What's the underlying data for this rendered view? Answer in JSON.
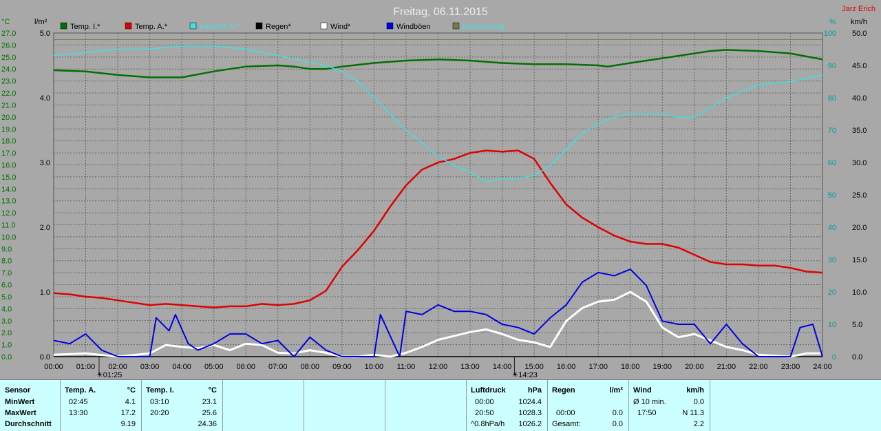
{
  "title": "Freitag, 06.11.2015",
  "author": "Jarz Erich",
  "colors": {
    "temp_indoor": "#007000",
    "temp_outdoor": "#e00000",
    "humidity": "#40e0e0",
    "rain": "#000000",
    "wind": "#ffffff",
    "gust": "#0000e0",
    "radiation": "#7a7a50",
    "axis_left": "#007000",
    "axis_right": "#009a9a",
    "grid": "#666666",
    "plot_bg": "#a8a8a8",
    "panel_bg": "#ccffff"
  },
  "axes": {
    "left_unit": "°C",
    "left2_unit": "l/m²",
    "right_unit": "%",
    "right2_unit": "km/h",
    "temp_ticks": [
      "27.0",
      "26.0",
      "25.0",
      "24.0",
      "23.0",
      "22.0",
      "21.0",
      "20.0",
      "19.0",
      "18.0",
      "17.0",
      "16.0",
      "15.0",
      "14.0",
      "13.0",
      "12.0",
      "11.0",
      "10.0",
      "9.0",
      "8.0",
      "7.0",
      "6.0",
      "5.0",
      "4.0",
      "3.0",
      "2.0",
      "1.0",
      "0.0"
    ],
    "rain_ticks": [
      "5.0",
      "4.0",
      "3.0",
      "2.0",
      "1.0",
      "0.0"
    ],
    "hum_ticks": [
      "100",
      "90",
      "80",
      "70",
      "60",
      "50",
      "40",
      "30",
      "20",
      "10",
      "0"
    ],
    "wind_ticks": [
      "50.0",
      "45.0",
      "40.0",
      "35.0",
      "30.0",
      "25.0",
      "20.0",
      "15.0",
      "10.0",
      "5.0",
      "0.0"
    ],
    "x_ticks": [
      "00:00",
      "01:00",
      "02:00",
      "03:00",
      "04:00",
      "05:00",
      "06:00",
      "07:00",
      "08:00",
      "09:00",
      "10:00",
      "11:00",
      "12:00",
      "13:00",
      "14:00",
      "15:00",
      "16:00",
      "17:00",
      "18:00",
      "19:00",
      "20:00",
      "21:00",
      "22:00",
      "23:00",
      "24:00"
    ],
    "sunrise": "01:25",
    "sunset": "14:23"
  },
  "legend": [
    {
      "label": "Temp. I.*",
      "key": "temp_indoor"
    },
    {
      "label": "Temp. A.*",
      "key": "temp_outdoor"
    },
    {
      "label": "Feuchte A.*",
      "key": "humidity"
    },
    {
      "label": "Regen*",
      "key": "rain"
    },
    {
      "label": "Wind*",
      "key": "wind"
    },
    {
      "label": "Windböen",
      "key": "gust"
    },
    {
      "label": "Einstrahlung",
      "key": "radiation"
    }
  ],
  "chart_data": {
    "type": "line",
    "title": "Freitag, 06.11.2015",
    "x_unit": "hours",
    "xlim": [
      0,
      24
    ],
    "ylim_temp": [
      0,
      27
    ],
    "ylim_rain": [
      0,
      5
    ],
    "ylim_humidity": [
      0,
      100
    ],
    "ylim_wind": [
      0,
      50
    ],
    "grid": true,
    "series": [
      {
        "name": "Temp. I.*",
        "axis": "temp",
        "x": [
          0,
          1,
          2,
          3,
          4,
          5,
          6,
          7,
          7.5,
          8,
          8.5,
          9,
          10,
          11,
          12,
          13,
          14,
          15,
          16,
          17,
          17.3,
          18,
          19,
          20,
          20.5,
          21,
          22,
          23,
          24
        ],
        "values": [
          23.9,
          23.8,
          23.5,
          23.3,
          23.3,
          23.8,
          24.2,
          24.3,
          24.2,
          24.0,
          24.0,
          24.2,
          24.5,
          24.7,
          24.8,
          24.7,
          24.5,
          24.4,
          24.4,
          24.3,
          24.2,
          24.5,
          24.9,
          25.3,
          25.5,
          25.6,
          25.5,
          25.3,
          24.8
        ]
      },
      {
        "name": "Temp. A.*",
        "axis": "temp",
        "x": [
          0,
          0.5,
          1,
          1.5,
          2,
          2.5,
          3,
          3.5,
          4,
          4.5,
          5,
          5.5,
          6,
          6.5,
          7,
          7.5,
          8,
          8.5,
          9,
          9.5,
          10,
          10.5,
          11,
          11.5,
          12,
          12.5,
          13,
          13.5,
          14,
          14.5,
          15,
          15.5,
          16,
          16.5,
          17,
          17.5,
          18,
          18.5,
          19,
          19.5,
          20,
          20.5,
          21,
          21.5,
          22,
          22.5,
          23,
          23.5,
          24
        ],
        "values": [
          5.3,
          5.2,
          5.0,
          4.9,
          4.7,
          4.5,
          4.3,
          4.4,
          4.3,
          4.2,
          4.1,
          4.2,
          4.2,
          4.4,
          4.3,
          4.4,
          4.7,
          5.5,
          7.5,
          8.9,
          10.5,
          12.5,
          14.3,
          15.6,
          16.2,
          16.5,
          17.0,
          17.2,
          17.1,
          17.2,
          16.5,
          14.5,
          12.7,
          11.6,
          10.8,
          10.1,
          9.6,
          9.4,
          9.4,
          9.1,
          8.5,
          7.9,
          7.7,
          7.7,
          7.6,
          7.6,
          7.4,
          7.1,
          7.0
        ]
      },
      {
        "name": "Feuchte A.*",
        "axis": "humidity",
        "x": [
          0,
          1,
          2,
          3,
          4,
          5,
          6,
          7,
          8,
          8.5,
          9,
          9.5,
          10,
          10.5,
          11,
          11.5,
          12,
          12.5,
          13,
          13.5,
          14,
          14.5,
          15,
          15.5,
          16,
          16.5,
          17,
          17.5,
          18,
          18.5,
          19,
          19.5,
          20,
          20.5,
          21,
          21.5,
          22,
          23,
          24
        ],
        "values": [
          93,
          94,
          95,
          95,
          96,
          96,
          95,
          93,
          91,
          90,
          88,
          85,
          80,
          75,
          70,
          66,
          62,
          59,
          57,
          54,
          55,
          55,
          56,
          59,
          64,
          69,
          72,
          74,
          75,
          75,
          75,
          74,
          74,
          77,
          80,
          82,
          84,
          85,
          87
        ]
      },
      {
        "name": "Regen*",
        "axis": "rain",
        "x": [
          0,
          24
        ],
        "values": [
          0,
          0
        ]
      },
      {
        "name": "Wind*",
        "axis": "wind",
        "x": [
          0,
          1,
          2,
          3,
          3.5,
          4,
          4.5,
          5,
          5.5,
          6,
          6.5,
          7,
          7.5,
          8,
          8.5,
          9,
          9.5,
          10,
          10.5,
          11,
          11.5,
          12,
          12.5,
          13,
          13.5,
          14,
          14.5,
          15,
          15.5,
          16,
          16.5,
          17,
          17.5,
          18,
          18.5,
          19,
          19.5,
          20,
          20.5,
          21,
          21.5,
          22,
          23,
          23.5,
          24
        ],
        "values": [
          0.3,
          0.5,
          0,
          0.5,
          1.8,
          1.5,
          1.3,
          1.8,
          1.0,
          2.0,
          1.8,
          0.6,
          0.5,
          1.0,
          0.6,
          0,
          0,
          0.3,
          0,
          0.6,
          1.5,
          2.6,
          3.2,
          3.8,
          4.2,
          3.5,
          2.6,
          2.2,
          1.5,
          5.5,
          7.5,
          8.5,
          8.8,
          10.0,
          8.5,
          4.5,
          3.0,
          3.5,
          2.5,
          1.5,
          1.0,
          0.3,
          0,
          0.5,
          0.5
        ]
      },
      {
        "name": "Windböen",
        "axis": "wind",
        "x": [
          0,
          0.5,
          1,
          1.5,
          2,
          3,
          3.2,
          3.6,
          3.8,
          4.2,
          4.5,
          5,
          5.5,
          6,
          6.5,
          7,
          7.5,
          8,
          8.5,
          9,
          10,
          10.2,
          10.8,
          11,
          11.5,
          12,
          12.5,
          13,
          13.5,
          14,
          14.5,
          15,
          15.5,
          16,
          16.5,
          17,
          17.5,
          18,
          18.5,
          19,
          19.5,
          20,
          20.5,
          21,
          21.5,
          22,
          23,
          23.3,
          23.7,
          24
        ],
        "values": [
          2.5,
          2.0,
          3.5,
          1.0,
          0,
          0,
          6.0,
          4.0,
          6.5,
          2.0,
          1.0,
          2.0,
          3.5,
          3.5,
          2.0,
          2.5,
          0,
          3.0,
          1.0,
          0,
          0,
          6.5,
          0,
          7.0,
          6.5,
          8.0,
          7.0,
          7.0,
          6.5,
          5.0,
          4.5,
          3.5,
          6.0,
          8.0,
          11.5,
          13.0,
          12.5,
          13.5,
          11.0,
          5.5,
          5.0,
          5.0,
          2.0,
          5.0,
          2.0,
          0,
          0,
          4.5,
          5.0,
          0
        ]
      },
      {
        "name": "Einstrahlung",
        "axis": "humidity",
        "x": [
          0,
          24
        ],
        "values": [
          98,
          98
        ]
      }
    ]
  },
  "panel": {
    "sensor": {
      "header": "Sensor",
      "min": "MinWert",
      "max": "MaxWert",
      "avg": "Durchschnitt"
    },
    "temp_a": {
      "header": "Temp. A.",
      "unit": "°C",
      "min_time": "02:45",
      "min": "4.1",
      "max_time": "13:30",
      "max": "17.2",
      "avg": "9.19"
    },
    "temp_i": {
      "header": "Temp. I.",
      "unit": "°C",
      "min_time": "03:10",
      "min": "23.1",
      "max_time": "20:20",
      "max": "25.6",
      "avg": "24.36"
    },
    "pressure": {
      "header": "Luftdruck",
      "unit": "hPa",
      "min_time": "00:00",
      "min": "1024.4",
      "max_time": "20:50",
      "max": "1028.3",
      "trend_label": "^0.8hPa/h",
      "avg": "1026.2"
    },
    "rain": {
      "header": "Regen",
      "unit": "l/m²",
      "row2_time": "00:00",
      "row2": "0.0",
      "row3_label": "Gesamt:",
      "row3": "0.0"
    },
    "wind": {
      "header": "Wind",
      "unit": "km/h",
      "row1_label": "Ø 10 min.",
      "row1": "0.0",
      "row2_time": "17:50",
      "row2": "N 11.3",
      "row3": "2.2"
    }
  }
}
